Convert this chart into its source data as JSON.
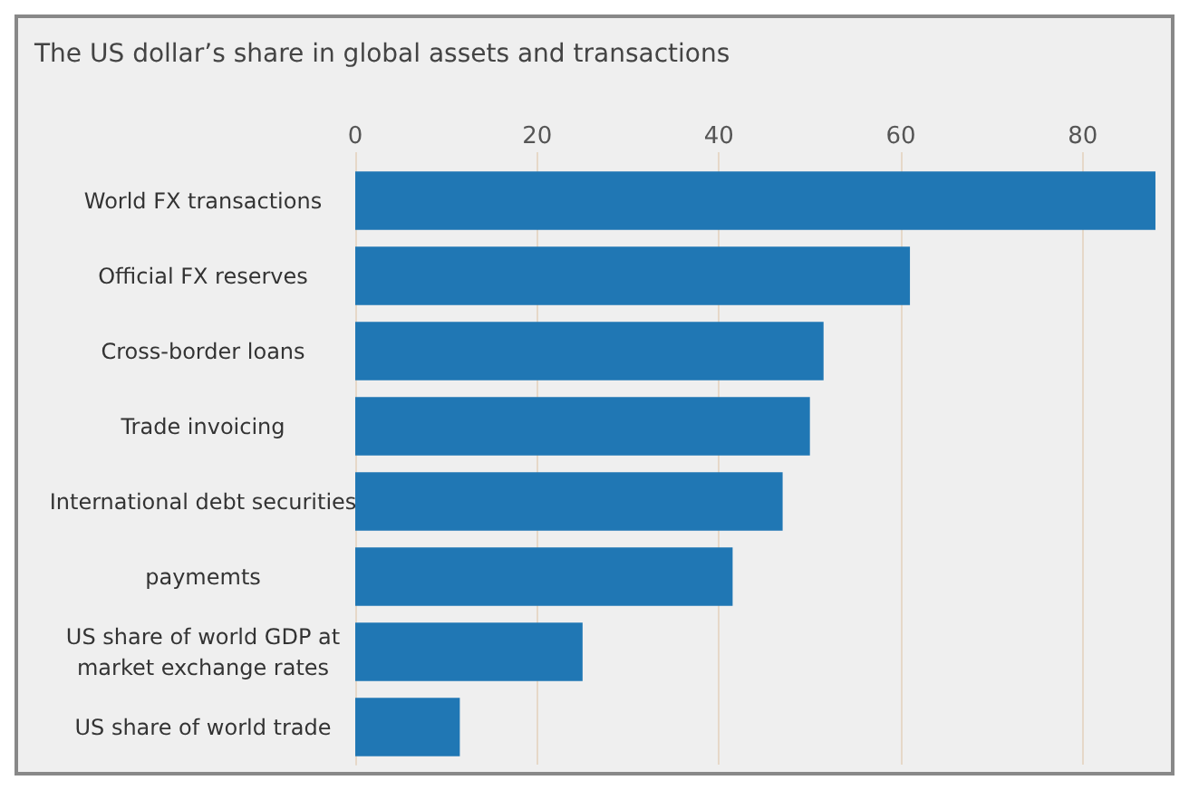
{
  "chart_data": {
    "type": "bar",
    "orientation": "horizontal",
    "title": "The US dollar’s share in global assets and transactions",
    "categories": [
      "World FX transactions",
      "Official FX reserves",
      "Cross-border loans",
      "Trade invoicing",
      "International debt securities",
      "paymemts",
      "US share of world GDP at\nmarket exchange rates",
      "US share of world trade"
    ],
    "values": [
      88,
      61,
      51.5,
      50,
      47,
      41.5,
      25,
      11.5
    ],
    "color": "#2077b4",
    "xlim": [
      0,
      88.5
    ],
    "xticks": [
      0,
      20,
      40,
      60,
      80
    ],
    "grid": "x"
  }
}
